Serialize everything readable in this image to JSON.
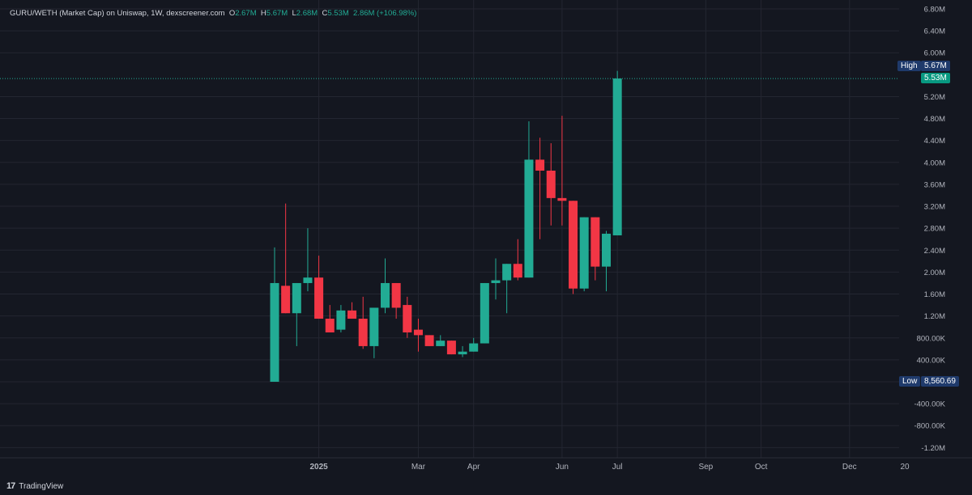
{
  "legend": {
    "symbol": "GURU/WETH (Market Cap) on Uniswap, 1W, dexscreener.com",
    "o_key": "O",
    "o_val": "2.67M",
    "h_key": "H",
    "h_val": "5.67M",
    "l_key": "L",
    "l_val": "2.68M",
    "c_key": "C",
    "c_val": "5.53M",
    "change": "2.86M (+106.98%)"
  },
  "markers": {
    "high_label": "High",
    "high_value": "5.67M",
    "last_value": "5.53M",
    "low_label": "Low",
    "low_value": "8,560.69"
  },
  "branding": {
    "name": "TradingView"
  },
  "colors": {
    "up": "#22ab94",
    "down": "#f23645",
    "background": "#141720",
    "grid": "#232631"
  },
  "chart_data": {
    "type": "candlestick",
    "interval": "1W",
    "y_unit": "market cap (USD)",
    "ylim": [
      -1300000,
      6900000
    ],
    "y_ticks": [
      {
        "v": 6800000,
        "label": "6.80M"
      },
      {
        "v": 6400000,
        "label": "6.40M"
      },
      {
        "v": 6000000,
        "label": "6.00M"
      },
      {
        "v": 5200000,
        "label": "5.20M"
      },
      {
        "v": 4800000,
        "label": "4.80M"
      },
      {
        "v": 4400000,
        "label": "4.40M"
      },
      {
        "v": 4000000,
        "label": "4.00M"
      },
      {
        "v": 3600000,
        "label": "3.60M"
      },
      {
        "v": 3200000,
        "label": "3.20M"
      },
      {
        "v": 2800000,
        "label": "2.80M"
      },
      {
        "v": 2400000,
        "label": "2.40M"
      },
      {
        "v": 2000000,
        "label": "2.00M"
      },
      {
        "v": 1600000,
        "label": "1.60M"
      },
      {
        "v": 1200000,
        "label": "1.20M"
      },
      {
        "v": 800000,
        "label": "800.00K"
      },
      {
        "v": 400000,
        "label": "400.00K"
      },
      {
        "v": -400000,
        "label": "-400.00K"
      },
      {
        "v": -800000,
        "label": "-800.00K"
      },
      {
        "v": -1200000,
        "label": "-1.20M"
      }
    ],
    "x_ticks": [
      {
        "i": 4,
        "label": "2025",
        "bold": true
      },
      {
        "i": 13,
        "label": "Mar"
      },
      {
        "i": 18,
        "label": "Apr"
      },
      {
        "i": 26,
        "label": "Jun"
      },
      {
        "i": 31,
        "label": "Jul"
      },
      {
        "i": 39,
        "label": "Sep"
      },
      {
        "i": 44,
        "label": "Oct"
      },
      {
        "i": 52,
        "label": "Dec"
      },
      {
        "i": 57,
        "label": "20"
      }
    ],
    "high": 5670000,
    "low": 8560.69,
    "last": 5530000,
    "candles": [
      {
        "o": 0,
        "h": 2450000,
        "l": 0,
        "c": 1800000
      },
      {
        "o": 1750000,
        "h": 3250000,
        "l": 1250000,
        "c": 1250000
      },
      {
        "o": 1250000,
        "h": 1800000,
        "l": 650000,
        "c": 1800000
      },
      {
        "o": 1800000,
        "h": 2800000,
        "l": 1650000,
        "c": 1900000
      },
      {
        "o": 1900000,
        "h": 2300000,
        "l": 1150000,
        "c": 1150000
      },
      {
        "o": 1150000,
        "h": 1400000,
        "l": 900000,
        "c": 900000
      },
      {
        "o": 950000,
        "h": 1400000,
        "l": 900000,
        "c": 1300000
      },
      {
        "o": 1300000,
        "h": 1450000,
        "l": 1150000,
        "c": 1150000
      },
      {
        "o": 1150000,
        "h": 1550000,
        "l": 600000,
        "c": 650000
      },
      {
        "o": 650000,
        "h": 1350000,
        "l": 430000,
        "c": 1350000
      },
      {
        "o": 1350000,
        "h": 2250000,
        "l": 1250000,
        "c": 1800000
      },
      {
        "o": 1800000,
        "h": 1800000,
        "l": 1150000,
        "c": 1350000
      },
      {
        "o": 1400000,
        "h": 1550000,
        "l": 800000,
        "c": 900000
      },
      {
        "o": 950000,
        "h": 1150000,
        "l": 550000,
        "c": 850000
      },
      {
        "o": 850000,
        "h": 850000,
        "l": 650000,
        "c": 650000
      },
      {
        "o": 650000,
        "h": 850000,
        "l": 650000,
        "c": 750000
      },
      {
        "o": 750000,
        "h": 750000,
        "l": 500000,
        "c": 500000
      },
      {
        "o": 500000,
        "h": 650000,
        "l": 450000,
        "c": 550000
      },
      {
        "o": 550000,
        "h": 800000,
        "l": 550000,
        "c": 700000
      },
      {
        "o": 700000,
        "h": 1800000,
        "l": 700000,
        "c": 1800000
      },
      {
        "o": 1800000,
        "h": 2250000,
        "l": 1500000,
        "c": 1850000
      },
      {
        "o": 1850000,
        "h": 2150000,
        "l": 1250000,
        "c": 2150000
      },
      {
        "o": 2150000,
        "h": 2600000,
        "l": 1850000,
        "c": 1900000
      },
      {
        "o": 1900000,
        "h": 4750000,
        "l": 1900000,
        "c": 4050000
      },
      {
        "o": 4050000,
        "h": 4450000,
        "l": 2600000,
        "c": 3850000
      },
      {
        "o": 3850000,
        "h": 4350000,
        "l": 2850000,
        "c": 3350000
      },
      {
        "o": 3350000,
        "h": 4850000,
        "l": 2850000,
        "c": 3300000
      },
      {
        "o": 3300000,
        "h": 3300000,
        "l": 1600000,
        "c": 1700000
      },
      {
        "o": 1700000,
        "h": 3000000,
        "l": 1650000,
        "c": 3000000
      },
      {
        "o": 3000000,
        "h": 3000000,
        "l": 1850000,
        "c": 2100000
      },
      {
        "o": 2100000,
        "h": 2750000,
        "l": 1650000,
        "c": 2700000
      },
      {
        "o": 2670000,
        "h": 5670000,
        "l": 2680000,
        "c": 5530000
      }
    ]
  }
}
